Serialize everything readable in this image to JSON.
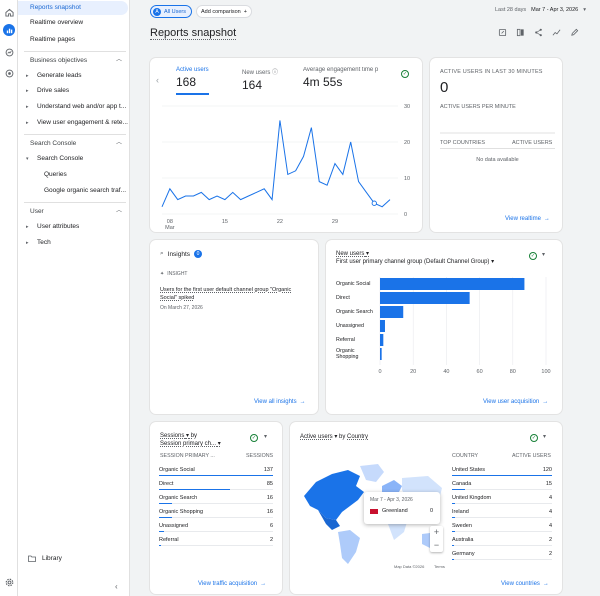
{
  "nav": {
    "items": [
      {
        "label": "Reports snapshot",
        "top": 2
      },
      {
        "label": "Realtime overview",
        "top": 16
      },
      {
        "label": "Realtime pages",
        "top": 33
      }
    ],
    "business_objectives": "Business objectives",
    "bo_items": [
      "Generate leads",
      "Drive sales",
      "Understand web and/or app t...",
      "View user engagement & rete..."
    ],
    "search_console": "Search Console",
    "sc_items": [
      "Search Console",
      "Queries",
      "Google organic search traf..."
    ],
    "user": "User",
    "user_items": [
      "User attributes",
      "Tech"
    ],
    "library": "Library"
  },
  "topbar": {
    "all_users": "All Users",
    "add_comparison": "Add comparison",
    "date_label": "Last 28 days",
    "date_range": "Mar 7 - Apr 3, 2026"
  },
  "page_title": "Reports snapshot",
  "metrics": [
    {
      "label": "Active users",
      "value": "168"
    },
    {
      "label": "New users",
      "value": "164"
    },
    {
      "label": "Average engagement time p",
      "value": "4m 55s"
    }
  ],
  "line_chart": {
    "x_ticks": [
      "08",
      "15",
      "22",
      "29"
    ],
    "x_month": "Mar",
    "y_ticks": [
      "30",
      "20",
      "10",
      "0"
    ]
  },
  "realtime": {
    "title": "ACTIVE USERS IN LAST 30 MINUTES",
    "value": "0",
    "subtitle": "ACTIVE USERS PER MINUTE",
    "col1": "TOP COUNTRIES",
    "col2": "ACTIVE USERS",
    "no_data": "No data available",
    "link": "View realtime"
  },
  "insights": {
    "title": "Insights",
    "badge": "0",
    "tag": "INSIGHT",
    "headline": "Users for the first user default channel group \"Organic Social\" spiked",
    "date": "On March 27, 2026",
    "link": "View all insights"
  },
  "acquisition": {
    "title_metric": "New users",
    "title_dim": "First user primary channel group (Default Channel Group)",
    "link": "View user acquisition",
    "x_ticks": [
      "0",
      "20",
      "40",
      "60",
      "80",
      "100"
    ]
  },
  "sessions": {
    "title_metric": "Sessions",
    "title_dim": "Session primary ch...",
    "col1": "SESSION PRIMARY ...",
    "col2": "SESSIONS",
    "link": "View traffic acquisition"
  },
  "geo": {
    "title_metric": "Active users",
    "title_dim": "Country",
    "col1": "COUNTRY",
    "col2": "ACTIVE USERS",
    "tooltip_date": "Mar 7 - Apr 3, 2026",
    "tooltip_country": "Greenland",
    "tooltip_value": "0",
    "map_credit": "Map Data ©2026",
    "terms": "Terms",
    "link": "View countries"
  },
  "chart_data": [
    {
      "type": "line",
      "series": [
        {
          "name": "Active users",
          "values": [
            2,
            7,
            4,
            5,
            5,
            6,
            4,
            5,
            4,
            6,
            4,
            5,
            6,
            7,
            4,
            26,
            11,
            12,
            16,
            24,
            9,
            8,
            14,
            11,
            20,
            9,
            6,
            3,
            2,
            4
          ]
        }
      ],
      "ylim": [
        0,
        30
      ]
    },
    {
      "type": "bar",
      "orientation": "horizontal",
      "categories": [
        "Organic Social",
        "Direct",
        "Organic Search",
        "Unassigned",
        "Referral",
        "Organic Shopping"
      ],
      "values": [
        87,
        54,
        14,
        3,
        2,
        1
      ],
      "xlim": [
        0,
        100
      ]
    },
    {
      "type": "table",
      "categories": [
        "Organic Social",
        "Direct",
        "Organic Search",
        "Organic Shopping",
        "Unassigned",
        "Referral"
      ],
      "values": [
        137,
        85,
        16,
        16,
        6,
        2
      ]
    },
    {
      "type": "table",
      "categories": [
        "United States",
        "Canada",
        "United Kingdom",
        "Ireland",
        "Sweden",
        "Australia",
        "Germany"
      ],
      "values": [
        120,
        15,
        4,
        4,
        4,
        2,
        2
      ]
    }
  ]
}
